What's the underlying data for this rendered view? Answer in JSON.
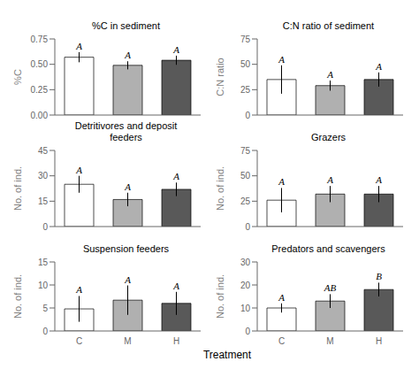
{
  "chart_data": [
    {
      "type": "bar",
      "title": "%C in sediment",
      "ylabel": "%C",
      "categories": [
        "C",
        "M",
        "H"
      ],
      "values": [
        0.57,
        0.49,
        0.54
      ],
      "errors": [
        0.05,
        0.04,
        0.045
      ],
      "annotations": [
        "A",
        "A",
        "A"
      ],
      "colors": [
        "#ffffff",
        "#b0b0b0",
        "#595959"
      ],
      "ylim": [
        0,
        0.75
      ],
      "yticks": [
        {
          "value": 0,
          "label": "0.00"
        },
        0.25,
        {
          "value": 0.5,
          "label": "0.50"
        },
        0.75
      ],
      "tick_labels": "y"
    },
    {
      "type": "bar",
      "title": "C:N ratio of sediment",
      "ylabel": "C:N ratio",
      "categories": [
        "C",
        "M",
        "H"
      ],
      "values": [
        35,
        29,
        35
      ],
      "errors": [
        14,
        5,
        7
      ],
      "annotations": [
        "A",
        "A",
        "A"
      ],
      "colors": [
        "#ffffff",
        "#b0b0b0",
        "#595959"
      ],
      "ylim": [
        0,
        75
      ],
      "yticks": [
        0,
        25,
        50,
        75
      ],
      "tick_labels": "y"
    },
    {
      "type": "bar",
      "title": "Detritivores and deposit\nfeeders",
      "ylabel": "No. of ind.",
      "categories": [
        "C",
        "M",
        "H"
      ],
      "values": [
        25,
        16,
        22
      ],
      "errors": [
        5,
        4,
        4
      ],
      "annotations": [
        "A",
        "A",
        "A"
      ],
      "colors": [
        "#ffffff",
        "#b0b0b0",
        "#595959"
      ],
      "ylim": [
        0,
        45
      ],
      "yticks": [
        0,
        15,
        30,
        45
      ],
      "tick_labels": "y"
    },
    {
      "type": "bar",
      "title": "Grazers",
      "ylabel": "No. of ind.",
      "categories": [
        "C",
        "M",
        "H"
      ],
      "values": [
        26,
        32,
        32
      ],
      "errors": [
        12,
        8,
        8
      ],
      "annotations": [
        "A",
        "A",
        "A"
      ],
      "colors": [
        "#ffffff",
        "#b0b0b0",
        "#595959"
      ],
      "ylim": [
        0,
        75
      ],
      "yticks": [
        0,
        25,
        50,
        75
      ],
      "tick_labels": "y"
    },
    {
      "type": "bar",
      "title": "Suspension feeders",
      "ylabel": "No. of ind.",
      "categories": [
        "C",
        "M",
        "H"
      ],
      "values": [
        4.8,
        6.7,
        6.0
      ],
      "errors": [
        2.8,
        3.2,
        2.5
      ],
      "annotations": [
        "A",
        "A",
        "A"
      ],
      "colors": [
        "#ffffff",
        "#b0b0b0",
        "#595959"
      ],
      "ylim": [
        0,
        15
      ],
      "yticks": [
        0,
        5,
        10,
        15
      ]
    },
    {
      "type": "bar",
      "title": "Predators and scavengers",
      "ylabel": "No. of ind.",
      "categories": [
        "C",
        "M",
        "H"
      ],
      "values": [
        10,
        13,
        18
      ],
      "errors": [
        2,
        3,
        3
      ],
      "annotations": [
        "A",
        "AB",
        "B"
      ],
      "colors": [
        "#ffffff",
        "#b0b0b0",
        "#595959"
      ],
      "ylim": [
        0,
        30
      ],
      "yticks": [
        0,
        10,
        20,
        30
      ]
    }
  ],
  "xlabel": "Treatment"
}
